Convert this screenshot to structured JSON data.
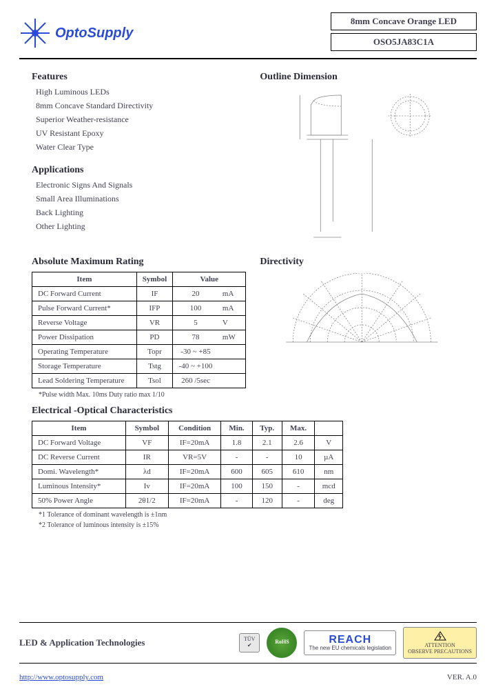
{
  "header": {
    "brand": "OptoSupply",
    "product_title": "8mm Concave Orange LED",
    "part_number": "OSO5JA83C1A"
  },
  "features": {
    "heading": "Features",
    "items": [
      "High Luminous LEDs",
      "8mm Concave Standard Directivity",
      "Superior Weather-resistance",
      "UV Resistant Epoxy",
      "Water Clear Type"
    ]
  },
  "applications": {
    "heading": "Applications",
    "items": [
      "Electronic Signs And Signals",
      "Small Area Illuminations",
      "Back Lighting",
      "Other Lighting"
    ]
  },
  "outline": {
    "heading": "Outline Dimension"
  },
  "abs_max": {
    "heading": "Absolute Maximum Rating",
    "cols": [
      "Item",
      "Symbol",
      "Value",
      ""
    ],
    "rows": [
      [
        "DC Forward Current",
        "IF",
        "20",
        "mA"
      ],
      [
        "Pulse Forward Current*",
        "IFP",
        "100",
        "mA"
      ],
      [
        "Reverse Voltage",
        "VR",
        "5",
        "V"
      ],
      [
        "Power Dissipation",
        "PD",
        "78",
        "mW"
      ],
      [
        "Operating Temperature",
        "Topr",
        "-30 ~ +85",
        ""
      ],
      [
        "Storage Temperature",
        "Tstg",
        "-40 ~ +100",
        ""
      ],
      [
        "Lead Soldering Temperature",
        "Tsol",
        "260   /5sec",
        ""
      ]
    ],
    "note": "*Pulse width Max. 10ms   Duty ratio max 1/10"
  },
  "directivity": {
    "heading": "Directivity"
  },
  "elec_opt": {
    "heading": "Electrical -Optical Characteristics",
    "cols": [
      "Item",
      "Symbol",
      "Condition",
      "Min.",
      "Typ.",
      "Max.",
      ""
    ],
    "rows": [
      [
        "DC Forward Voltage",
        "VF",
        "IF=20mA",
        "1.8",
        "2.1",
        "2.6",
        "V"
      ],
      [
        "DC Reverse Current",
        "IR",
        "VR=5V",
        "-",
        "-",
        "10",
        "µA"
      ],
      [
        "Domi. Wavelength*",
        "λd",
        "IF=20mA",
        "600",
        "605",
        "610",
        "nm"
      ],
      [
        "Luminous Intensity*",
        "Iv",
        "IF=20mA",
        "100",
        "150",
        "-",
        "mcd"
      ],
      [
        "50% Power Angle",
        "2θ1/2",
        "IF=20mA",
        "-",
        "120",
        "-",
        "deg"
      ]
    ],
    "note1": "*1 Tolerance of dominant wavelength is ±1nm",
    "note2": "*2 Tolerance of luminous intensity is ±15%"
  },
  "footer": {
    "title": "LED & Application Technologies",
    "url": "http://www.optosupply.com",
    "version": "VER. A.0",
    "reach_big": "REACH",
    "reach_sub": "The new EU chemicals legislation",
    "rohs": "RoHS",
    "esd1": "ATTENTION",
    "esd2": "OBSERVE PRECAUTIONS",
    "tuv": "TÜV"
  }
}
